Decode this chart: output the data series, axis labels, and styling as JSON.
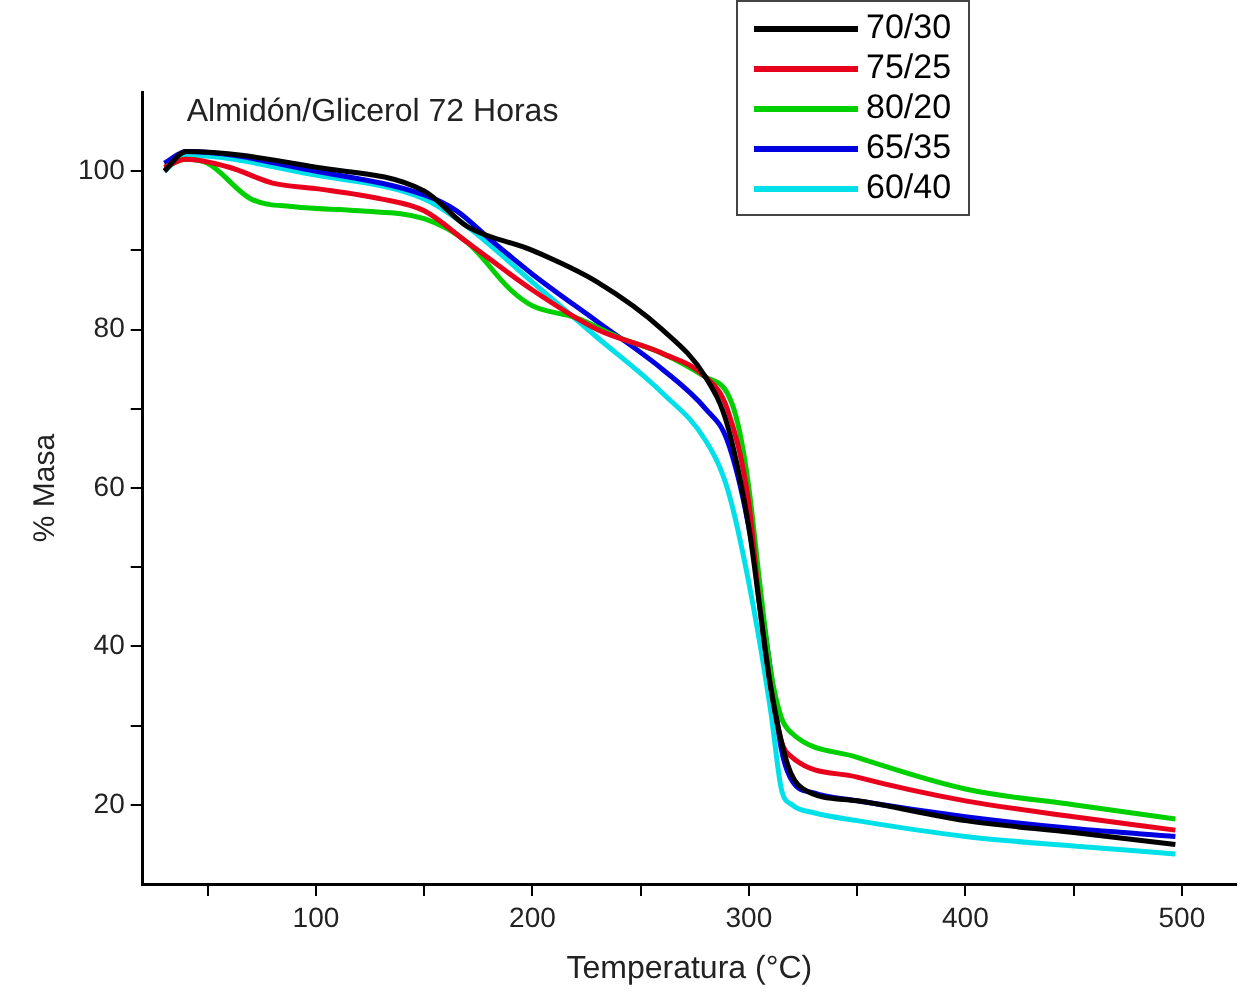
{
  "chart_data": {
    "type": "line",
    "title": "Almidón/Glicerol 72 Horas",
    "xlabel": "Temperatura (°C)",
    "ylabel": "% Masa",
    "xlim": [
      20,
      525
    ],
    "ylim": [
      10,
      110
    ],
    "xticks": [
      {
        "value": 50,
        "label": null
      },
      100,
      {
        "value": 150,
        "label": null
      },
      200,
      {
        "value": 250,
        "label": null
      },
      300,
      {
        "value": 350,
        "label": null
      },
      400,
      {
        "value": 450,
        "label": null
      },
      500
    ],
    "yticks": [
      {
        "value": 20,
        "label": "20"
      },
      {
        "value": 30,
        "label": null
      },
      40,
      {
        "value": 50,
        "label": null
      },
      60,
      {
        "value": 70,
        "label": null
      },
      80,
      {
        "value": 90,
        "label": null
      },
      100
    ],
    "grid": false,
    "legend": "top right",
    "marker": "none",
    "line_style": "solid",
    "series": [
      {
        "name": "70/30",
        "color": "#000000",
        "x": [
          30,
          40,
          100,
          150,
          170,
          200,
          230,
          260,
          280,
          290,
          300,
          305,
          310,
          318,
          325,
          350,
          400,
          450,
          497
        ],
        "values": [
          100,
          102.5,
          100.5,
          97.5,
          93,
          90,
          86,
          80,
          74,
          68,
          55,
          45,
          35,
          25,
          22,
          20.5,
          18,
          16.5,
          15
        ]
      },
      {
        "name": "75/25",
        "color": "#e8001c",
        "x": [
          30,
          40,
          60,
          80,
          100,
          130,
          150,
          170,
          200,
          230,
          260,
          280,
          290,
          300,
          305,
          310,
          315,
          320,
          350,
          400,
          450,
          497
        ],
        "values": [
          100.5,
          101.5,
          100.5,
          98.5,
          97.8,
          96.5,
          95,
          91,
          85,
          80,
          77,
          74,
          70,
          58,
          45,
          35,
          28,
          26,
          23.5,
          20.5,
          18.5,
          16.8
        ]
      },
      {
        "name": "80/20",
        "color": "#00d000",
        "x": [
          30,
          40,
          50,
          70,
          90,
          120,
          150,
          170,
          190,
          200,
          220,
          240,
          260,
          280,
          290,
          295,
          300,
          305,
          310,
          315,
          320,
          350,
          400,
          450,
          497
        ],
        "values": [
          100.5,
          101.5,
          101,
          96.5,
          95.5,
          95,
          94,
          91,
          85,
          83,
          81.5,
          79,
          77,
          74,
          72,
          68,
          60,
          48,
          37,
          31,
          29,
          26,
          22,
          20,
          18.2
        ]
      },
      {
        "name": "65/35",
        "color": "#0000e0",
        "x": [
          30,
          40,
          100,
          150,
          165,
          180,
          200,
          230,
          260,
          280,
          290,
          300,
          310,
          315,
          320,
          330,
          350,
          400,
          450,
          497
        ],
        "values": [
          101,
          102.5,
          100,
          97,
          95,
          91.5,
          87,
          81,
          75,
          70,
          66,
          55,
          37,
          27,
          23,
          21.5,
          20.5,
          18.5,
          17,
          16
        ]
      },
      {
        "name": "60/40",
        "color": "#00e0e8",
        "x": [
          30,
          40,
          100,
          150,
          170,
          200,
          230,
          260,
          280,
          290,
          300,
          310,
          315,
          320,
          330,
          350,
          400,
          450,
          497
        ],
        "values": [
          100,
          102,
          99.5,
          96.5,
          93,
          86,
          79,
          72,
          66,
          60,
          48,
          32,
          22,
          20,
          19,
          18,
          16,
          14.8,
          13.8
        ]
      }
    ]
  }
}
